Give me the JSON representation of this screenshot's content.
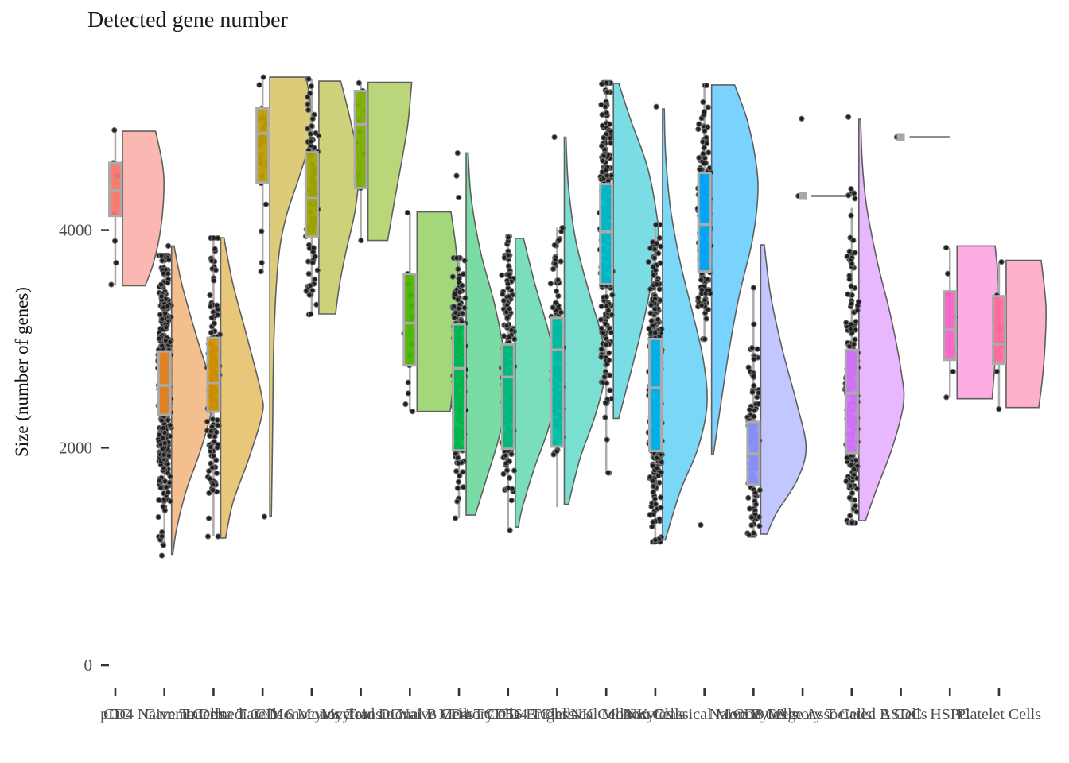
{
  "title": "Detected gene number",
  "y_axis": {
    "label": "Size (number of genes)",
    "ticks": [
      "0",
      "2000",
      "4000"
    ],
    "tick_values": [
      0,
      2000,
      4000
    ]
  },
  "x_axis": {
    "note": "19 overlapping category labels, one per cell type"
  },
  "chart_data": {
    "type": "raincloud (half-violin + boxplot + jittered points)",
    "title": "Detected gene number",
    "ylabel": "Size (number of genes)",
    "ylim": [
      0,
      5500
    ],
    "grid": false,
    "legend": false,
    "categories": [
      "pDC",
      "CD4 Naive T Cells",
      "Gamma Delta T Cells",
      "Intermediate Monocytes",
      "CD16 Monocytes",
      "Myeloid DC",
      "Transitional B Cells",
      "Naive CD4 T Cells",
      "Memory CD4 T Cells",
      "CD56 Bright NK Cells",
      "Classical Monocytes",
      "NK Cells",
      "Non Classical Monocytes",
      "Naive B Cells",
      "CD8 Memory T Cells",
      "Age Associated B Cells",
      "ASDC",
      "HSPC",
      "Platelet Cells"
    ],
    "style": {
      "box_border": "#ABABAB",
      "whisker": "#ABABAB",
      "violin_outline": "#5f5f5f",
      "point_fill": "#1e1e1e",
      "point_ring": "#6e6e6e",
      "sparse_gray": "#A8A8A8",
      "axis_text": "#4d4d4d",
      "tick_mark": "#333333",
      "violin_alpha": 0.52,
      "box_alpha": 0.95
    },
    "series": [
      {
        "label": "pDC",
        "color": "#F8766D",
        "box": {
          "q1": 4131,
          "med": 4364,
          "q3": 4618
        },
        "whiskers": {
          "lo": 3491,
          "hi": 4923
        },
        "violin_max_width": 52,
        "violin_profile": [
          [
            4910,
            0.8
          ],
          [
            4600,
            0.97
          ],
          [
            4350,
            1.0
          ],
          [
            4000,
            0.92
          ],
          [
            3700,
            0.75
          ],
          [
            3490,
            0.55
          ]
        ],
        "points": {
          "n": 0,
          "extra": [
            4920,
            4618,
            4364,
            4150,
            3900,
            3700,
            3500,
            4500
          ]
        }
      },
      {
        "label": "CD4 Naive T Cells",
        "color": "#E88526",
        "box": {
          "q1": 2301,
          "med": 2572,
          "q3": 2886
        },
        "whiskers": {
          "lo": 1110,
          "hi": 3767
        },
        "violin_max_width": 52,
        "violin_profile": [
          [
            3855,
            0.06
          ],
          [
            3500,
            0.25
          ],
          [
            3000,
            0.62
          ],
          [
            2600,
            0.95
          ],
          [
            2400,
            1.0
          ],
          [
            2000,
            0.72
          ],
          [
            1600,
            0.35
          ],
          [
            1250,
            0.12
          ],
          [
            1020,
            0.03
          ]
        ],
        "points": {
          "n": 450,
          "extra": [
            1103,
            1008,
            3855
          ]
        }
      },
      {
        "label": "Gamma Delta T Cells",
        "color": "#D39200",
        "box": {
          "q1": 2331,
          "med": 2596,
          "q3": 3010
        },
        "whiskers": {
          "lo": 1184,
          "hi": 3927
        },
        "violin_max_width": 52,
        "violin_profile": [
          [
            3930,
            0.08
          ],
          [
            3500,
            0.3
          ],
          [
            3000,
            0.65
          ],
          [
            2500,
            0.98
          ],
          [
            2300,
            1.0
          ],
          [
            1900,
            0.68
          ],
          [
            1500,
            0.3
          ],
          [
            1170,
            0.12
          ]
        ],
        "points": {
          "n": 160,
          "extra": []
        }
      },
      {
        "label": "Intermediate Monocytes",
        "color": "#BC9D00",
        "box": {
          "q1": 4439,
          "med": 4890,
          "q3": 5119
        },
        "whiskers": {
          "lo": 3620,
          "hi": 5407
        },
        "violin_max_width": 52,
        "violin_profile": [
          [
            5407,
            0.88
          ],
          [
            5100,
            1.0
          ],
          [
            4800,
            0.95
          ],
          [
            4500,
            0.72
          ],
          [
            4100,
            0.38
          ],
          [
            3700,
            0.2
          ],
          [
            3000,
            0.1
          ],
          [
            2200,
            0.07
          ],
          [
            1370,
            0.04
          ]
        ],
        "points": {
          "n": 24,
          "extra": [
            1366,
            3620,
            3700
          ]
        }
      },
      {
        "label": "CD16 Monocytes",
        "color": "#9FA700",
        "box": {
          "q1": 3941,
          "med": 4293,
          "q3": 4716
        },
        "whiskers": {
          "lo": 3218,
          "hi": 5390
        },
        "violin_max_width": 50,
        "violin_profile": [
          [
            5370,
            0.55
          ],
          [
            5000,
            0.8
          ],
          [
            4600,
            1.0
          ],
          [
            4200,
            0.92
          ],
          [
            3800,
            0.68
          ],
          [
            3500,
            0.52
          ],
          [
            3230,
            0.42
          ]
        ],
        "points": {
          "n": 80,
          "extra": []
        }
      },
      {
        "label": "Myeloid DC",
        "color": "#7CAE00",
        "box": {
          "q1": 4388,
          "med": 4973,
          "q3": 5280
        },
        "whiskers": {
          "lo": 3905,
          "hi": 5353
        },
        "violin_max_width": 55,
        "violin_profile": [
          [
            5360,
            1.0
          ],
          [
            5000,
            0.92
          ],
          [
            4700,
            0.8
          ],
          [
            4300,
            0.62
          ],
          [
            3905,
            0.45
          ]
        ],
        "points": {
          "n": 0,
          "extra": [
            5353,
            5280,
            5150,
            5100,
            5000,
            4973,
            4900,
            4800,
            4700,
            4500,
            4388,
            3905
          ]
        }
      },
      {
        "label": "Transitional B Cells",
        "color": "#4CB400",
        "box": {
          "q1": 2757,
          "med": 3145,
          "q3": 3598
        },
        "whiskers": {
          "lo": 2333,
          "hi": 4161
        },
        "violin_max_width": 52,
        "violin_profile": [
          [
            4168,
            0.82
          ],
          [
            3800,
            0.95
          ],
          [
            3400,
            1.0
          ],
          [
            3000,
            0.95
          ],
          [
            2600,
            0.88
          ],
          [
            2333,
            0.8
          ]
        ],
        "points": {
          "n": 0,
          "extra": [
            4161,
            3598,
            3500,
            3400,
            3300,
            3200,
            3145,
            3050,
            2950,
            2850,
            2757,
            2600,
            2500,
            2400,
            2333
          ]
        }
      },
      {
        "label": "Naive CD4 T Cells",
        "color": "#00BC51",
        "box": {
          "q1": 1975,
          "med": 2730,
          "q3": 3135
        },
        "whiskers": {
          "lo": 1352,
          "hi": 3745
        },
        "violin_max_width": 52,
        "violin_profile": [
          [
            4710,
            0.05
          ],
          [
            4300,
            0.12
          ],
          [
            3800,
            0.35
          ],
          [
            3300,
            0.7
          ],
          [
            2800,
            0.95
          ],
          [
            2500,
            1.0
          ],
          [
            2100,
            0.8
          ],
          [
            1700,
            0.48
          ],
          [
            1380,
            0.22
          ]
        ],
        "points": {
          "n": 200,
          "extra": [
            4300,
            4709,
            4500
          ]
        }
      },
      {
        "label": "Memory CD4 T Cells",
        "color": "#00BF7D",
        "box": {
          "q1": 1990,
          "med": 2650,
          "q3": 2950
        },
        "whiskers": {
          "lo": 1242,
          "hi": 3942
        },
        "violin_max_width": 52,
        "violin_profile": [
          [
            3925,
            0.2
          ],
          [
            3500,
            0.48
          ],
          [
            3000,
            0.85
          ],
          [
            2600,
            1.0
          ],
          [
            2200,
            0.82
          ],
          [
            1800,
            0.45
          ],
          [
            1430,
            0.16
          ],
          [
            1271,
            0.08
          ]
        ],
        "points": {
          "n": 200,
          "extra": []
        }
      },
      {
        "label": "CD56 Bright NK Cells",
        "color": "#00C0A7",
        "box": {
          "q1": 2010,
          "med": 2900,
          "q3": 3195
        },
        "whiskers": {
          "lo": 1454,
          "hi": 4022
        },
        "violin_max_width": 52,
        "violin_profile": [
          [
            4855,
            0.04
          ],
          [
            4400,
            0.1
          ],
          [
            3900,
            0.28
          ],
          [
            3400,
            0.62
          ],
          [
            3000,
            0.92
          ],
          [
            2700,
            1.0
          ],
          [
            2300,
            0.75
          ],
          [
            1900,
            0.38
          ],
          [
            1480,
            0.1
          ]
        ],
        "points": {
          "n": 150,
          "extra": [
            4855
          ]
        }
      },
      {
        "label": "Classical Monocytes",
        "color": "#00BDCC",
        "box": {
          "q1": 3503,
          "med": 3985,
          "q3": 4424
        },
        "whiskers": {
          "lo": 1768,
          "hi": 5353
        },
        "violin_max_width": 56,
        "violin_profile": [
          [
            5350,
            0.12
          ],
          [
            5000,
            0.4
          ],
          [
            4600,
            0.75
          ],
          [
            4200,
            0.95
          ],
          [
            3900,
            1.0
          ],
          [
            3400,
            0.8
          ],
          [
            3000,
            0.58
          ],
          [
            2600,
            0.33
          ],
          [
            2270,
            0.12
          ]
        ],
        "points": {
          "n": 260,
          "extra": []
        }
      },
      {
        "label": "NK Cells",
        "color": "#00B5EE",
        "box": {
          "q1": 1970,
          "med": 2550,
          "q3": 3000
        },
        "whiskers": {
          "lo": 1133,
          "hi": 4051
        },
        "violin_max_width": 56,
        "violin_profile": [
          [
            5115,
            0.04
          ],
          [
            4700,
            0.07
          ],
          [
            4200,
            0.18
          ],
          [
            3700,
            0.4
          ],
          [
            3200,
            0.7
          ],
          [
            2800,
            0.92
          ],
          [
            2400,
            1.0
          ],
          [
            2000,
            0.8
          ],
          [
            1600,
            0.4
          ],
          [
            1150,
            0.06
          ]
        ],
        "points": {
          "n": 450,
          "extra": [
            5135
          ]
        }
      },
      {
        "label": "Non Classical Monocytes",
        "color": "#00A9FF",
        "box": {
          "q1": 3620,
          "med": 4051,
          "q3": 4527
        },
        "whiskers": {
          "lo": 2998,
          "hi": 5331
        },
        "violin_max_width": 58,
        "violin_profile": [
          [
            5335,
            0.5
          ],
          [
            5000,
            0.78
          ],
          [
            4600,
            0.97
          ],
          [
            4300,
            1.0
          ],
          [
            3900,
            0.88
          ],
          [
            3400,
            0.6
          ],
          [
            2900,
            0.38
          ],
          [
            2400,
            0.2
          ],
          [
            1938,
            0.04
          ]
        ],
        "points": {
          "n": 200,
          "extra": [
            1290
          ]
        }
      },
      {
        "label": "Naive B Cells",
        "color": "#8B93FF",
        "box": {
          "q1": 1659,
          "med": 1944,
          "q3": 2236
        },
        "whiskers": {
          "lo": 1198,
          "hi": 3471
        },
        "violin_max_width": 57,
        "violin_profile": [
          [
            3865,
            0.08
          ],
          [
            3400,
            0.22
          ],
          [
            2900,
            0.48
          ],
          [
            2400,
            0.8
          ],
          [
            2000,
            1.0
          ],
          [
            1700,
            0.8
          ],
          [
            1400,
            0.35
          ],
          [
            1206,
            0.14
          ]
        ],
        "points": {
          "n": 120,
          "extra": [
            3471
          ]
        }
      },
      {
        "label": "CD8 Memory T Cells",
        "color": "#B983FF",
        "sparse": true,
        "value": 4315,
        "points": {
          "n": 0,
          "extra": [
            5025,
            4315
          ]
        }
      },
      {
        "label": "Age Associated B Cells",
        "color": "#D575FE",
        "box": {
          "q1": 1950,
          "med": 2500,
          "q3": 2900
        },
        "whiskers": {
          "lo": 1308,
          "hi": 4205
        },
        "violin_max_width": 56,
        "violin_profile": [
          [
            5020,
            0.04
          ],
          [
            4600,
            0.08
          ],
          [
            4200,
            0.18
          ],
          [
            3700,
            0.42
          ],
          [
            3200,
            0.72
          ],
          [
            2700,
            0.95
          ],
          [
            2400,
            1.0
          ],
          [
            2000,
            0.75
          ],
          [
            1600,
            0.38
          ],
          [
            1330,
            0.15
          ]
        ],
        "points": {
          "n": 220,
          "extra": [
            5040,
            4350,
            4380,
            4320,
            4290,
            4340
          ]
        }
      },
      {
        "label": "ASDC",
        "color": "#EE64E9",
        "sparse": true,
        "value": 4856,
        "points": {
          "n": 0,
          "extra": [
            4856
          ]
        }
      },
      {
        "label": "HSPC",
        "color": "#FC61C9",
        "box": {
          "q1": 2808,
          "med": 3086,
          "q3": 3437
        },
        "whiskers": {
          "lo": 2464,
          "hi": 3839
        },
        "violin_max_width": 52,
        "violin_profile": [
          [
            3855,
            0.92
          ],
          [
            3500,
            1.0
          ],
          [
            3100,
            0.97
          ],
          [
            2800,
            0.92
          ],
          [
            2450,
            0.85
          ]
        ],
        "points": {
          "n": 0,
          "extra": [
            3839,
            3600,
            3410,
            3200,
            3086,
            2900,
            2700,
            2464
          ]
        }
      },
      {
        "label": "Platelet Cells",
        "color": "#FF689E",
        "box": {
          "q1": 2772,
          "med": 2954,
          "q3": 3393
        },
        "whiskers": {
          "lo": 2355,
          "hi": 3708
        },
        "violin_max_width": 50,
        "violin_profile": [
          [
            3722,
            0.88
          ],
          [
            3300,
            1.0
          ],
          [
            2900,
            0.97
          ],
          [
            2600,
            0.9
          ],
          [
            2370,
            0.82
          ]
        ],
        "points": {
          "n": 0,
          "extra": [
            3708,
            3400,
            3100,
            2954,
            2700,
            2355
          ]
        }
      }
    ]
  }
}
